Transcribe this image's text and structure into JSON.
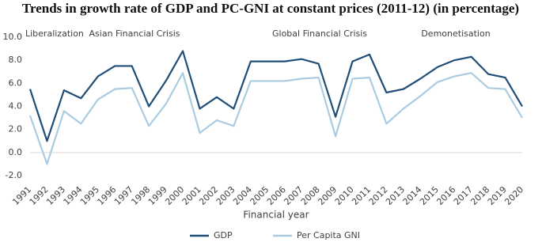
{
  "chart_data": {
    "type": "line",
    "title": "Trends in growth rate of GDP and PC-GNI at constant prices (2011-12) (in percentage)",
    "x_label": "Financial year",
    "categories": [
      "1991",
      "1992",
      "1993",
      "1994",
      "1995",
      "1996",
      "1997",
      "1998",
      "1999",
      "2000",
      "2001",
      "2002",
      "2003",
      "2004",
      "2005",
      "2006",
      "2007",
      "2008",
      "2009",
      "2010",
      "2011",
      "2012",
      "2013",
      "2014",
      "2015",
      "2016",
      "2017",
      "2018",
      "2019",
      "2020"
    ],
    "series": [
      {
        "name": "GDP",
        "color": "#1f4e79",
        "values": [
          5.5,
          1.0,
          5.4,
          4.7,
          6.6,
          7.5,
          7.5,
          4.0,
          6.2,
          8.8,
          3.8,
          4.8,
          3.8,
          7.9,
          7.9,
          7.9,
          8.1,
          7.7,
          3.1,
          7.9,
          8.5,
          5.2,
          5.5,
          6.4,
          7.4,
          8.0,
          8.3,
          6.8,
          6.5,
          4.0
        ]
      },
      {
        "name": "Per Capita GNI",
        "color": "#a9cce3",
        "values": [
          3.2,
          -1.0,
          3.6,
          2.5,
          4.6,
          5.5,
          5.6,
          2.3,
          4.2,
          6.9,
          1.7,
          2.8,
          2.3,
          6.2,
          6.2,
          6.2,
          6.4,
          6.5,
          1.4,
          6.4,
          6.5,
          2.5,
          3.8,
          4.9,
          6.1,
          6.6,
          6.9,
          5.6,
          5.5,
          3.0
        ]
      }
    ],
    "annotations": [
      "Liberalization",
      "Asian Financial Crisis",
      "Global Financial Crisis",
      "Demonetisation"
    ],
    "ylim": [
      -2,
      10
    ],
    "yticks": [
      {
        "value": -2,
        "label": "-2.0"
      },
      {
        "value": 0,
        "label": "0.0"
      },
      {
        "value": 2,
        "label": "2.0"
      },
      {
        "value": 4,
        "label": "4.0"
      },
      {
        "value": 6,
        "label": "6.0"
      },
      {
        "value": 8,
        "label": "8.0"
      },
      {
        "value": 10,
        "label": "10.0"
      }
    ],
    "grid": false,
    "legend": "bottom"
  }
}
